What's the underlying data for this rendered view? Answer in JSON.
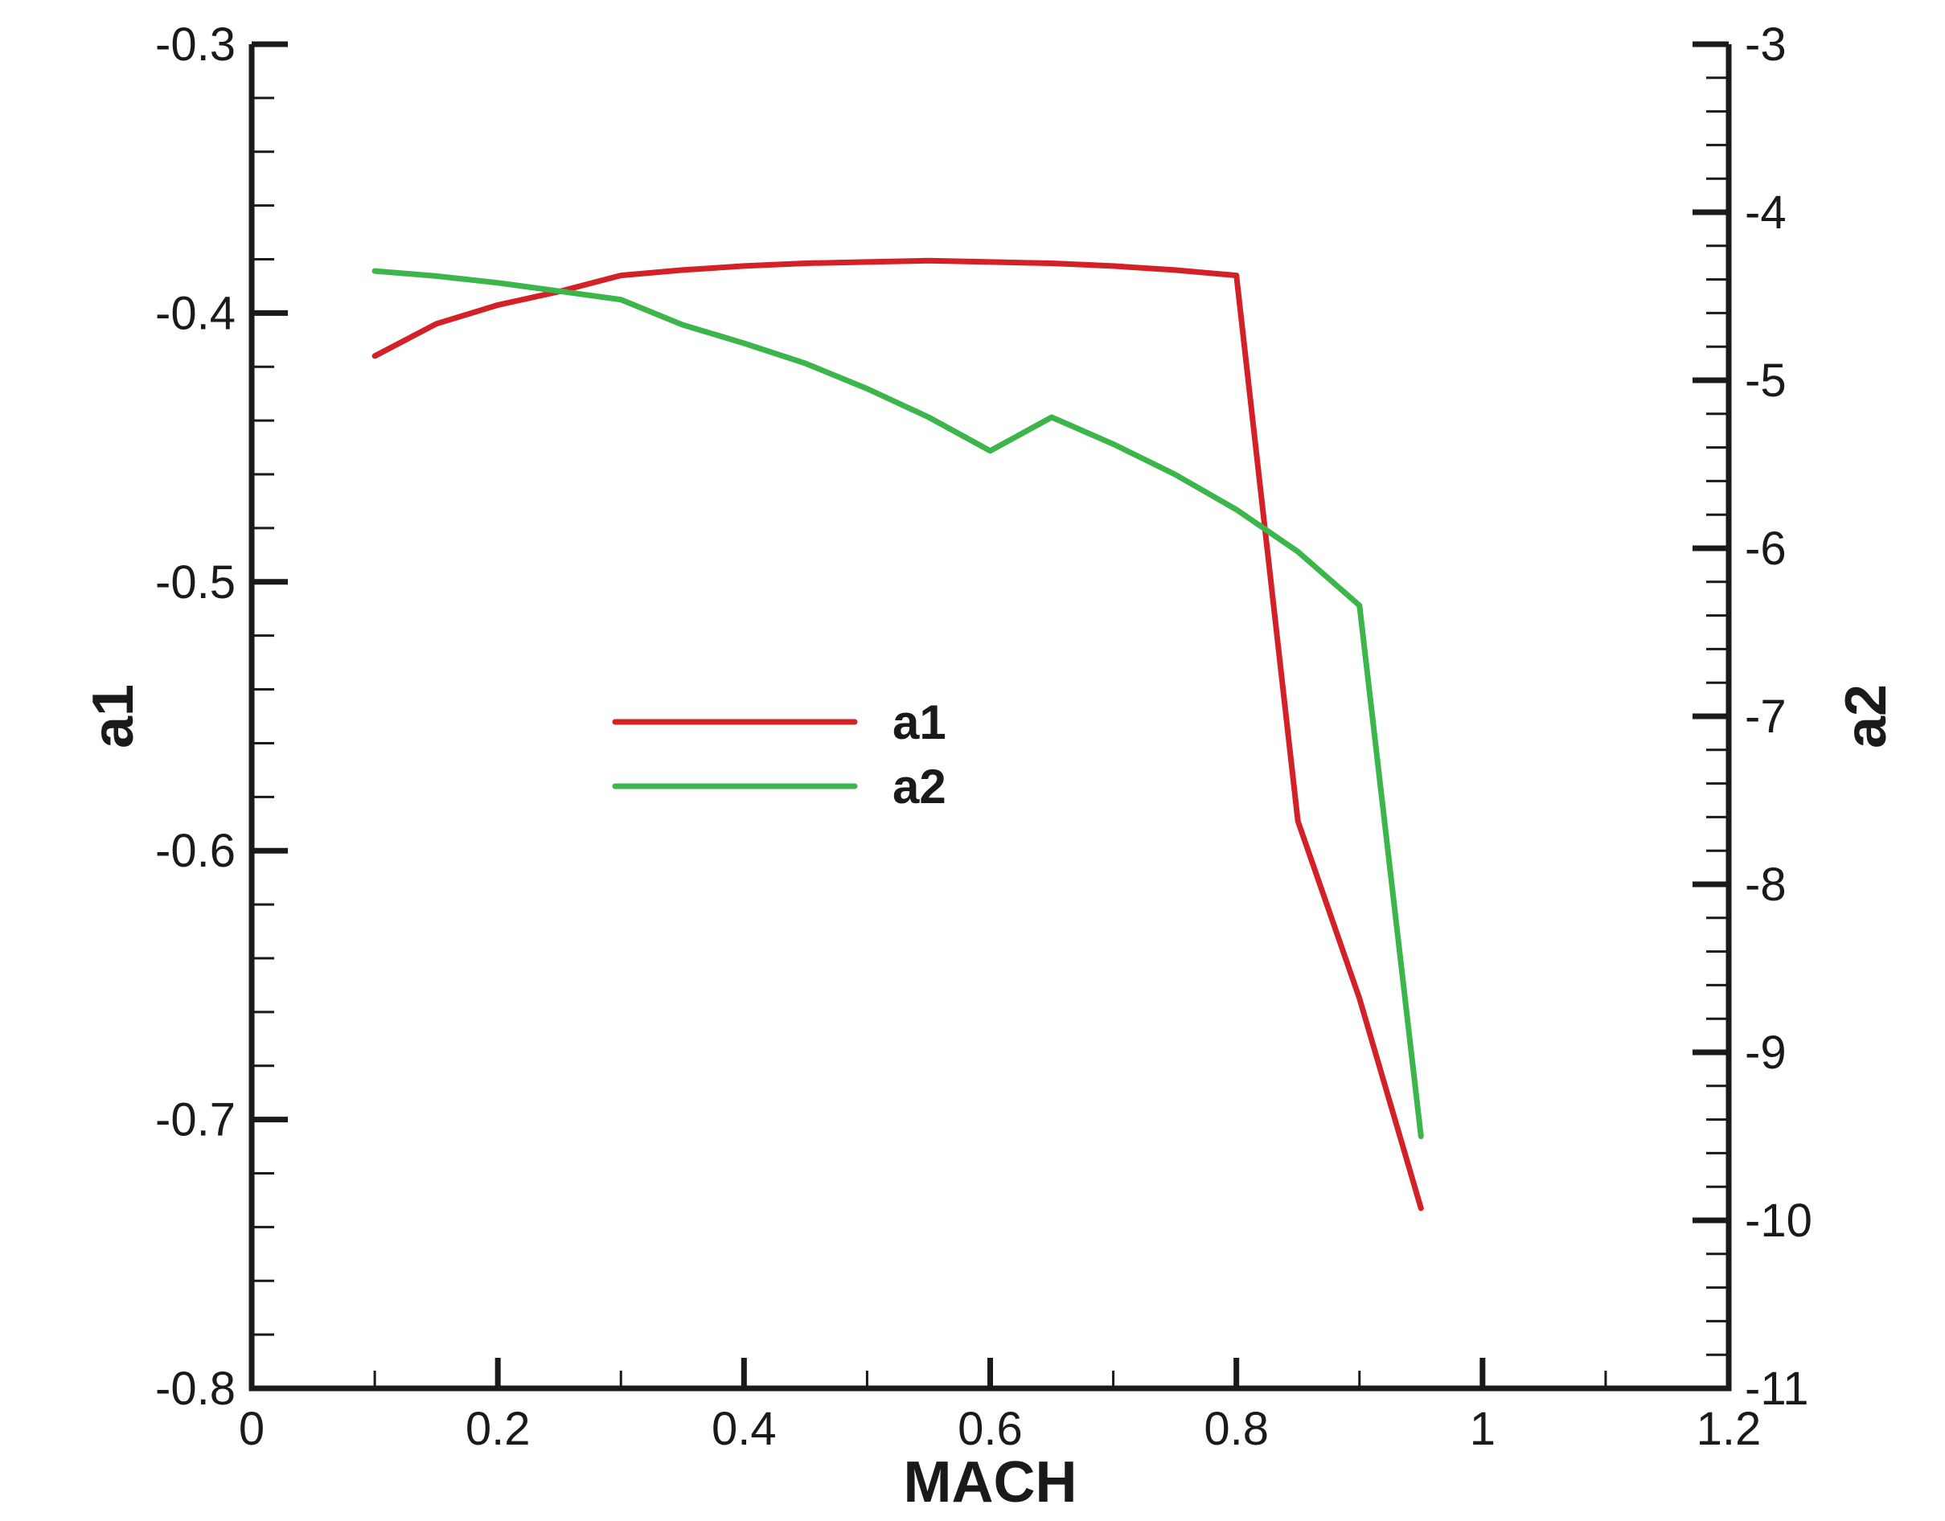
{
  "chart_data": {
    "type": "line",
    "xlabel": "MACH",
    "ylabel": "a1",
    "y2label": "a2",
    "xlim": [
      0,
      1.2
    ],
    "ylim": [
      -0.8,
      -0.3
    ],
    "y2lim": [
      -11,
      -3
    ],
    "x_ticks": [
      "0",
      "0.2",
      "0.4",
      "0.6",
      "0.8",
      "1",
      "1.2"
    ],
    "y_ticks": [
      "-0.3",
      "-0.4",
      "-0.5",
      "-0.6",
      "-0.7",
      "-0.8"
    ],
    "y2_ticks": [
      "-3",
      "-4",
      "-5",
      "-6",
      "-7",
      "-8",
      "-9",
      "-10",
      "-11"
    ],
    "legend_position": "center-left",
    "series": [
      {
        "name": "a1",
        "axis": "left",
        "color": "#d42027",
        "x": [
          0.1,
          0.15,
          0.2,
          0.25,
          0.3,
          0.35,
          0.4,
          0.45,
          0.5,
          0.55,
          0.6,
          0.65,
          0.7,
          0.75,
          0.8,
          0.85,
          0.9,
          0.95
        ],
        "y": [
          -0.416,
          -0.404,
          -0.397,
          -0.392,
          -0.386,
          -0.384,
          -0.3825,
          -0.3815,
          -0.381,
          -0.3805,
          -0.381,
          -0.3815,
          -0.3825,
          -0.384,
          -0.386,
          -0.589,
          -0.655,
          -0.733
        ]
      },
      {
        "name": "a2",
        "axis": "right",
        "color": "#3cb54a",
        "x": [
          0.1,
          0.15,
          0.2,
          0.25,
          0.3,
          0.35,
          0.4,
          0.45,
          0.5,
          0.55,
          0.6,
          0.65,
          0.7,
          0.75,
          0.8,
          0.85,
          0.9,
          0.95
        ],
        "y": [
          -4.35,
          -4.38,
          -4.42,
          -4.47,
          -4.52,
          -4.67,
          -4.78,
          -4.9,
          -5.05,
          -5.22,
          -5.42,
          -5.22,
          -5.38,
          -5.56,
          -5.77,
          -6.02,
          -6.34,
          -9.5
        ]
      }
    ]
  }
}
